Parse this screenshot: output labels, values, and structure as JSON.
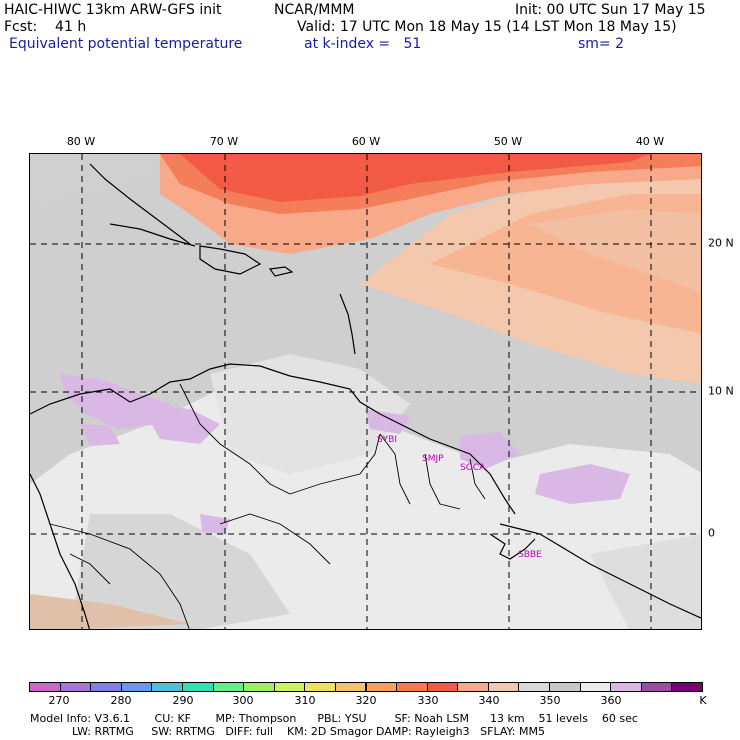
{
  "header": {
    "model_title": "HAIC-HIWC 13km ARW-GFS init",
    "org": "NCAR/MMM",
    "init": "Init: 00 UTC Sun 17 May 15",
    "fcst": "Fcst:    41 h",
    "valid": "Valid: 17 UTC Mon 18 May 15 (14 LST Mon 18 May 15)",
    "field": "Equivalent potential temperature",
    "level": "at k-index =   51",
    "smoothing": "sm= 2"
  },
  "map": {
    "lon_labels": [
      "80 W",
      "70 W",
      "60 W",
      "50 W",
      "40 W"
    ],
    "lat_labels": [
      "20 N",
      "10 N",
      "0"
    ],
    "stations": [
      "SYBI",
      "SMJP",
      "SOCA",
      "SBBE"
    ],
    "colors": {
      "purple_light": "#d9b8e6",
      "gray_light": "#ebebeb",
      "gray_mid": "#cfcfcf",
      "tan": "#f3c8ad",
      "salmon": "#f7a98a",
      "coral": "#f57e5a",
      "red": "#f25a45"
    }
  },
  "colorbar": {
    "colors": [
      "#cc66cc",
      "#a675d6",
      "#8080e6",
      "#6699ee",
      "#4fbfdd",
      "#33e0b0",
      "#66ee88",
      "#99f066",
      "#ccf060",
      "#f0e060",
      "#f8c070",
      "#f8a060",
      "#f57850",
      "#f25a45",
      "#f7a98a",
      "#f3c8ad",
      "#d9d9d9",
      "#c8c8c8",
      "#ebebeb",
      "#d9b8e6",
      "#a04aa8",
      "#770077"
    ],
    "labels": [
      "270",
      "280",
      "290",
      "300",
      "310",
      "320",
      "330",
      "340",
      "350",
      "360"
    ],
    "unit": "K"
  },
  "model_info": {
    "line1": "Model Info: V3.6.1       CU: KF       MP: Thompson      PBL: YSU        SF: Noah LSM      13 km    51 levels    60 sec",
    "line2": "            LW: RRTMG     SW: RRTMG   DIFF: full    KM: 2D Smagor DAMP: Rayleigh3   SFLAY: MM5"
  }
}
